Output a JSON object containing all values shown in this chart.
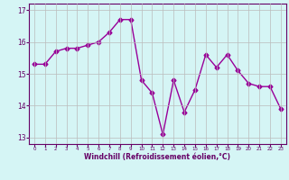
{
  "x": [
    0,
    1,
    2,
    3,
    4,
    5,
    6,
    7,
    8,
    9,
    10,
    11,
    12,
    13,
    14,
    15,
    16,
    17,
    18,
    19,
    20,
    21,
    22,
    23
  ],
  "y": [
    15.3,
    15.3,
    15.7,
    15.8,
    15.8,
    15.9,
    16.0,
    16.3,
    16.7,
    16.7,
    14.8,
    14.4,
    13.1,
    14.8,
    13.8,
    14.5,
    15.6,
    15.2,
    15.6,
    15.1,
    14.7,
    14.6,
    14.6,
    13.9
  ],
  "color": "#990099",
  "bg_color": "#d5f5f5",
  "grid_color": "#bbbbbb",
  "xlabel": "Windchill (Refroidissement éolien,°C)",
  "ylim": [
    12.8,
    17.2
  ],
  "xlim": [
    -0.5,
    23.5
  ],
  "yticks": [
    13,
    14,
    15,
    16,
    17
  ],
  "xticks": [
    0,
    1,
    2,
    3,
    4,
    5,
    6,
    7,
    8,
    9,
    10,
    11,
    12,
    13,
    14,
    15,
    16,
    17,
    18,
    19,
    20,
    21,
    22,
    23
  ],
  "marker": "D",
  "markersize": 2.5,
  "linewidth": 1.0,
  "tick_color": "#660066",
  "spine_color": "#660066"
}
